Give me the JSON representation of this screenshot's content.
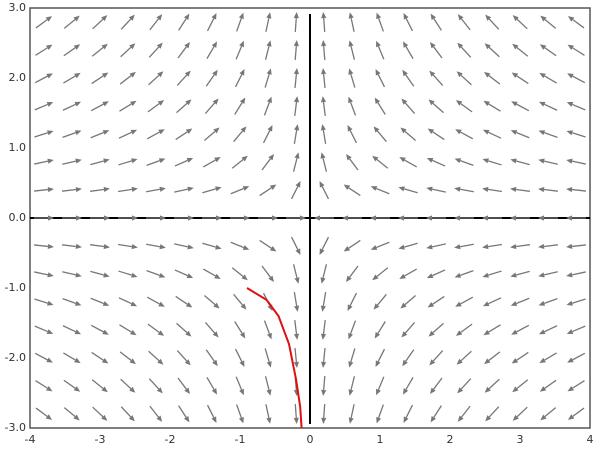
{
  "chart_data": {
    "type": "quiver",
    "xlim": [
      -4,
      4
    ],
    "ylim": [
      -3,
      3
    ],
    "xticks": [
      -4,
      -3,
      -2,
      -1,
      0,
      1,
      2,
      3,
      4
    ],
    "yticks": [
      {
        "value": 3,
        "label": "3.0"
      },
      {
        "value": 2,
        "label": "2.0"
      },
      {
        "value": 1,
        "label": "1.0"
      },
      {
        "value": 0,
        "label": "0.0"
      },
      {
        "value": -1,
        "label": "-1.0"
      },
      {
        "value": -2,
        "label": "-2.0"
      },
      {
        "value": -3,
        "label": "-3.0"
      }
    ],
    "grid_x": [
      -3.8,
      -3.4,
      -3.0,
      -2.6,
      -2.2,
      -1.8,
      -1.4,
      -1.0,
      -0.6,
      -0.2,
      0.2,
      0.6,
      1.0,
      1.4,
      1.8,
      2.2,
      2.6,
      3.0,
      3.4,
      3.8
    ],
    "grid_y": [
      2.8,
      2.4,
      2.0,
      1.6,
      1.2,
      0.8,
      0.4,
      0,
      -0.4,
      -0.8,
      -1.2,
      -1.6,
      -2.0,
      -2.4,
      -2.8
    ],
    "field": {
      "dx": [
        -1,
        0
      ],
      "dy": [
        0,
        1
      ]
    },
    "arrow_color": "#777777",
    "axis_color": "#000000",
    "trajectory": {
      "color": "#dd1111",
      "x": [
        -0.9,
        -0.62,
        -0.45,
        -0.3,
        -0.2,
        -0.14,
        -0.12
      ],
      "y": [
        -1.0,
        -1.17,
        -1.4,
        -1.8,
        -2.3,
        -2.7,
        -3.0
      ]
    }
  }
}
